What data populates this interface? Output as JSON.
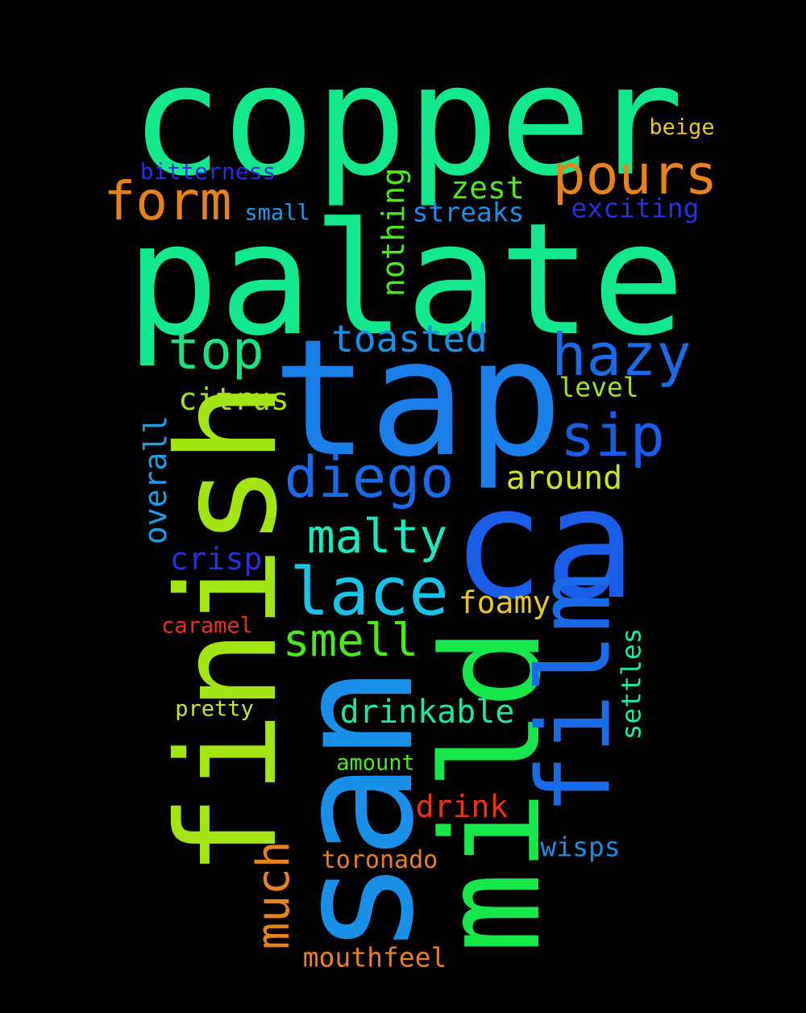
{
  "words": {
    "copper": {
      "text": "copper",
      "color": "#13e88d"
    },
    "palate": {
      "text": "palate",
      "color": "#13e88d"
    },
    "tap": {
      "text": "tap",
      "color": "#1a7fe8"
    },
    "ca": {
      "text": "ca",
      "color": "#1a5de8"
    },
    "finish": {
      "text": "finish",
      "color": "#a3e414"
    },
    "san": {
      "text": "san",
      "color": "#1a8fe8"
    },
    "mild": {
      "text": "mild",
      "color": "#17e84a"
    },
    "film": {
      "text": "film",
      "color": "#1a6be8"
    },
    "pours": {
      "text": "pours",
      "color": "#e8821a"
    },
    "form": {
      "text": "form",
      "color": "#e8821a"
    },
    "hazy": {
      "text": "hazy",
      "color": "#1a6be8"
    },
    "top": {
      "text": "top",
      "color": "#1ee07e"
    },
    "sip": {
      "text": "sip",
      "color": "#1a5de8"
    },
    "diego": {
      "text": "diego",
      "color": "#1a6be8"
    },
    "lace": {
      "text": "lace",
      "color": "#1ac2e8"
    },
    "malty": {
      "text": "malty",
      "color": "#1ee8c2"
    },
    "smell": {
      "text": "smell",
      "color": "#4fe81a"
    },
    "toasted": {
      "text": "toasted",
      "color": "#1a8fe8"
    },
    "much": {
      "text": "much",
      "color": "#e8821a"
    },
    "drinkable": {
      "text": "drinkable",
      "color": "#1ee8a0"
    },
    "nothing": {
      "text": "nothing",
      "color": "#4fe81a"
    },
    "around": {
      "text": "around",
      "color": "#d4e41a"
    },
    "citrus": {
      "text": "citrus",
      "color": "#a3e414"
    },
    "overall": {
      "text": "overall",
      "color": "#1a9ee8"
    },
    "crisp": {
      "text": "crisp",
      "color": "#2a2fe0"
    },
    "foamy": {
      "text": "foamy",
      "color": "#e8c81a"
    },
    "drink": {
      "text": "drink",
      "color": "#e8321a"
    },
    "zest": {
      "text": "zest",
      "color": "#4fe81a"
    },
    "streaks": {
      "text": "streaks",
      "color": "#1a8fe8"
    },
    "exciting": {
      "text": "exciting",
      "color": "#2a2fe0"
    },
    "level": {
      "text": "level",
      "color": "#a3e414"
    },
    "settles": {
      "text": "settles",
      "color": "#1ee8a0"
    },
    "wisps": {
      "text": "wisps",
      "color": "#1a8fe8"
    },
    "mouthfeel": {
      "text": "mouthfeel",
      "color": "#e8821a"
    },
    "toronado": {
      "text": "toronado",
      "color": "#e8821a"
    },
    "bitterness": {
      "text": "bitterness",
      "color": "#2a2fe0"
    },
    "small": {
      "text": "small",
      "color": "#1a9ee8"
    },
    "beige": {
      "text": "beige",
      "color": "#e8c81a"
    },
    "caramel": {
      "text": "caramel",
      "color": "#e8321a"
    },
    "pretty": {
      "text": "pretty",
      "color": "#d4e41a"
    },
    "amount": {
      "text": "amount",
      "color": "#4fe81a"
    }
  }
}
